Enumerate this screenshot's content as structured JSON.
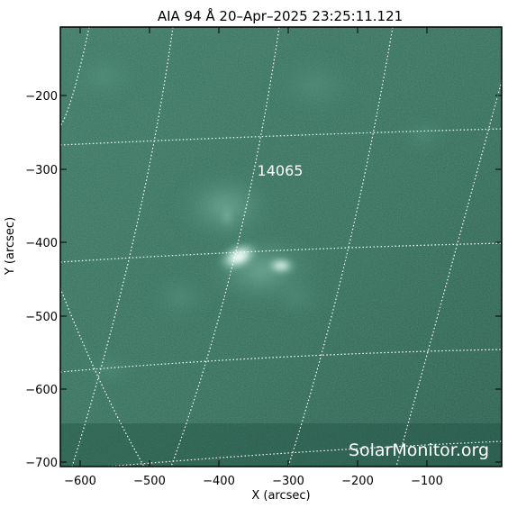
{
  "title": "AIA 94 Å 20–Apr–2025 23:25:11.121",
  "x_axis": {
    "label": "X (arcsec)",
    "range": [
      -625,
      -25
    ],
    "ticks": [
      -600,
      -500,
      -400,
      -300,
      -200,
      -100
    ],
    "tick_labels": [
      "−600",
      "−500",
      "−400",
      "−300",
      "−200",
      "−100"
    ]
  },
  "y_axis": {
    "label": "Y (arcsec)",
    "range": [
      -710,
      -115
    ],
    "ticks": [
      -200,
      -300,
      -400,
      -500,
      -600,
      -700
    ],
    "tick_labels": [
      "−200",
      "−300",
      "−400",
      "−500",
      "−600",
      "−700"
    ]
  },
  "region_label": "14065",
  "watermark": "SolarMonitor.org",
  "colors": {
    "image_base": "#2f6b59",
    "grid": "#ffffff",
    "frame": "#000000",
    "text_on_image": "#ffffff"
  }
}
